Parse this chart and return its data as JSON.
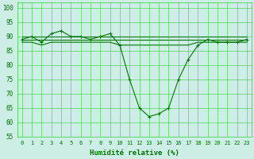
{
  "title": "",
  "xlabel": "Humidité relative (%)",
  "ylabel": "",
  "background_color": "#cceee6",
  "grid_color": "#33cc33",
  "line_color": "#007700",
  "marker_color": "#007700",
  "xlim": [
    -0.5,
    23.5
  ],
  "ylim": [
    55,
    102
  ],
  "yticks": [
    55,
    60,
    65,
    70,
    75,
    80,
    85,
    90,
    95,
    100
  ],
  "xticks": [
    0,
    1,
    2,
    3,
    4,
    5,
    6,
    7,
    8,
    9,
    10,
    11,
    12,
    13,
    14,
    15,
    16,
    17,
    18,
    19,
    20,
    21,
    22,
    23
  ],
  "series_main": [
    89,
    90,
    88,
    91,
    92,
    90,
    90,
    89,
    90,
    91,
    87,
    75,
    65,
    62,
    63,
    65,
    75,
    82,
    87,
    89,
    88,
    88,
    88,
    89
  ],
  "series_flat1": [
    90,
    90,
    90,
    90,
    90,
    90,
    90,
    90,
    90,
    90,
    90,
    90,
    90,
    90,
    90,
    90,
    90,
    90,
    90,
    90,
    90,
    90,
    90,
    90
  ],
  "series_flat2": [
    89,
    89,
    89,
    89,
    89,
    89,
    89,
    89,
    89,
    89,
    89,
    89,
    89,
    89,
    89,
    89,
    89,
    89,
    89,
    89,
    89,
    89,
    89,
    89
  ],
  "series_flat3": [
    88,
    88,
    87,
    88,
    88,
    88,
    88,
    88,
    88,
    88,
    87,
    87,
    87,
    87,
    87,
    87,
    87,
    87,
    88,
    88,
    88,
    88,
    88,
    88
  ]
}
